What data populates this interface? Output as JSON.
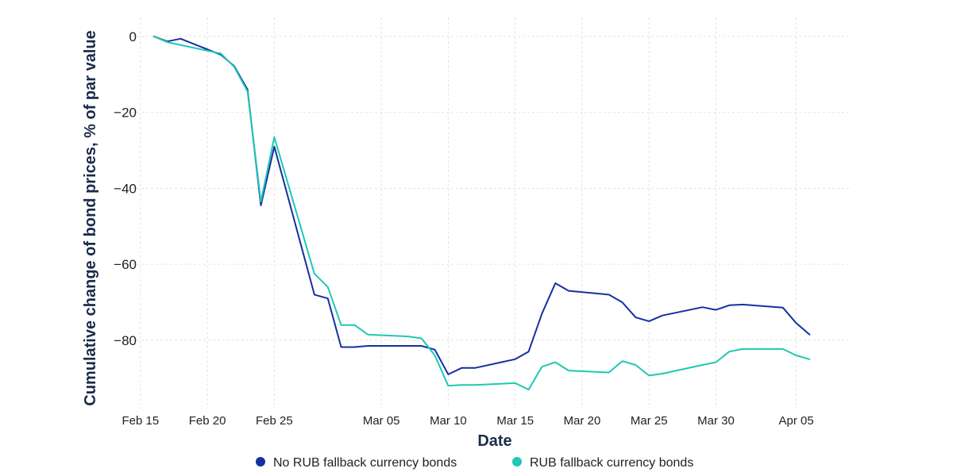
{
  "chart_data": {
    "type": "line",
    "xlabel": "Date",
    "ylabel": "Cumulative change of bond prices, % of par value",
    "x_axis": {
      "min": "2022-02-14",
      "max": "2022-04-09",
      "ticks": [
        {
          "date": "2022-02-15",
          "label": "Feb 15"
        },
        {
          "date": "2022-02-20",
          "label": "Feb 20"
        },
        {
          "date": "2022-02-25",
          "label": "Feb 25"
        },
        {
          "date": "2022-03-05",
          "label": "Mar 05"
        },
        {
          "date": "2022-03-10",
          "label": "Mar 10"
        },
        {
          "date": "2022-03-15",
          "label": "Mar 15"
        },
        {
          "date": "2022-03-20",
          "label": "Mar 20"
        },
        {
          "date": "2022-03-25",
          "label": "Mar 25"
        },
        {
          "date": "2022-03-30",
          "label": "Mar 30"
        },
        {
          "date": "2022-04-05",
          "label": "Apr 05"
        }
      ]
    },
    "y_axis": {
      "ylim": [
        -98,
        5
      ],
      "ticks": [
        0,
        -20,
        -40,
        -60,
        -80
      ],
      "tick_labels": [
        "0",
        "−20",
        "−40",
        "−60",
        "−80"
      ]
    },
    "grid": true,
    "legend_position": "bottom",
    "series": [
      {
        "name": "No RUB fallback currency bonds",
        "color": "#1530a0",
        "points": [
          [
            "2022-02-16",
            0
          ],
          [
            "2022-02-17",
            -1.3
          ],
          [
            "2022-02-18",
            -0.6
          ],
          [
            "2022-02-21",
            -4.8
          ],
          [
            "2022-02-22",
            -7.8
          ],
          [
            "2022-02-23",
            -14
          ],
          [
            "2022-02-24",
            -44.5
          ],
          [
            "2022-02-25",
            -29
          ],
          [
            "2022-02-28",
            -68
          ],
          [
            "2022-03-01",
            -69
          ],
          [
            "2022-03-02",
            -81.8
          ],
          [
            "2022-03-03",
            -81.8
          ],
          [
            "2022-03-04",
            -81.5
          ],
          [
            "2022-03-07",
            -81.5
          ],
          [
            "2022-03-08",
            -81.5
          ],
          [
            "2022-03-09",
            -82.5
          ],
          [
            "2022-03-10",
            -89
          ],
          [
            "2022-03-11",
            -87.3
          ],
          [
            "2022-03-12",
            -87.3
          ],
          [
            "2022-03-15",
            -85
          ],
          [
            "2022-03-16",
            -83
          ],
          [
            "2022-03-17",
            -73
          ],
          [
            "2022-03-18",
            -65
          ],
          [
            "2022-03-19",
            -67
          ],
          [
            "2022-03-22",
            -68
          ],
          [
            "2022-03-23",
            -70
          ],
          [
            "2022-03-24",
            -74
          ],
          [
            "2022-03-25",
            -75
          ],
          [
            "2022-03-26",
            -73.5
          ],
          [
            "2022-03-29",
            -71.3
          ],
          [
            "2022-03-30",
            -72
          ],
          [
            "2022-03-31",
            -70.8
          ],
          [
            "2022-04-01",
            -70.6
          ],
          [
            "2022-04-04",
            -71.4
          ],
          [
            "2022-04-05",
            -75.5
          ],
          [
            "2022-04-06",
            -78.5
          ]
        ]
      },
      {
        "name": "RUB fallback currency bonds",
        "color": "#1ec8b4",
        "points": [
          [
            "2022-02-16",
            0
          ],
          [
            "2022-02-17",
            -1.5
          ],
          [
            "2022-02-21",
            -4.5
          ],
          [
            "2022-02-22",
            -8
          ],
          [
            "2022-02-23",
            -14.5
          ],
          [
            "2022-02-24",
            -43.5
          ],
          [
            "2022-02-25",
            -26.5
          ],
          [
            "2022-02-28",
            -62.5
          ],
          [
            "2022-03-01",
            -66
          ],
          [
            "2022-03-02",
            -76
          ],
          [
            "2022-03-03",
            -76
          ],
          [
            "2022-03-04",
            -78.5
          ],
          [
            "2022-03-07",
            -79
          ],
          [
            "2022-03-08",
            -79.5
          ],
          [
            "2022-03-09",
            -84
          ],
          [
            "2022-03-10",
            -92
          ],
          [
            "2022-03-11",
            -91.8
          ],
          [
            "2022-03-12",
            -91.8
          ],
          [
            "2022-03-15",
            -91.3
          ],
          [
            "2022-03-16",
            -93
          ],
          [
            "2022-03-17",
            -87
          ],
          [
            "2022-03-18",
            -85.8
          ],
          [
            "2022-03-19",
            -88
          ],
          [
            "2022-03-22",
            -88.5
          ],
          [
            "2022-03-23",
            -85.5
          ],
          [
            "2022-03-24",
            -86.5
          ],
          [
            "2022-03-25",
            -89.3
          ],
          [
            "2022-03-26",
            -88.8
          ],
          [
            "2022-03-29",
            -86.5
          ],
          [
            "2022-03-30",
            -85.8
          ],
          [
            "2022-03-31",
            -83
          ],
          [
            "2022-04-01",
            -82.3
          ],
          [
            "2022-04-04",
            -82.3
          ],
          [
            "2022-04-05",
            -84
          ],
          [
            "2022-04-06",
            -85
          ]
        ]
      }
    ]
  }
}
